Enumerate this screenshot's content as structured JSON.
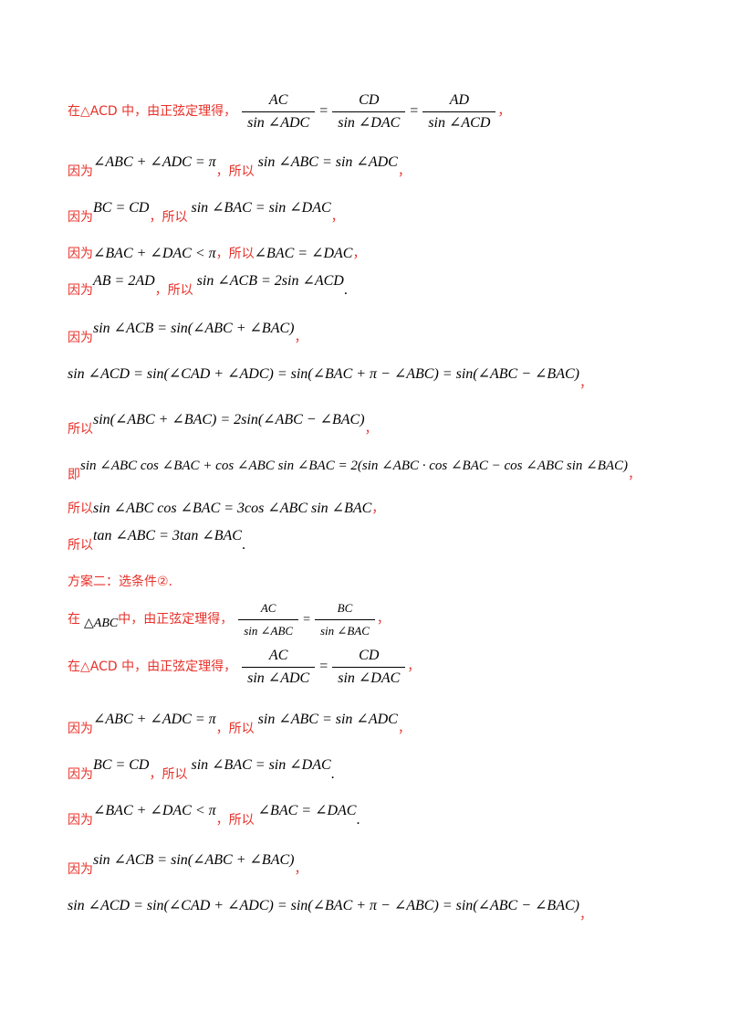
{
  "lines": [
    {
      "cn1": "在△ACD 中，由正弦定理得，",
      "f1n": "AC",
      "f1d": "sin ∠ADC",
      "f2n": "CD",
      "f2d": "sin ∠DAC",
      "f3n": "AD",
      "f3d": "sin ∠ACD",
      "end": "，"
    },
    {
      "cn1": "因为",
      "m1": "∠ABC + ∠ADC = π",
      "cn2": "，所以",
      "m2": "sin ∠ABC = sin ∠ADC",
      "end": "，"
    },
    {
      "cn1": "因为",
      "m1": "BC = CD",
      "cn2": "，所以",
      "m2": "sin ∠BAC = sin ∠DAC",
      "end": "，"
    },
    {
      "cn1": "因为",
      "m1": "∠BAC + ∠DAC < π",
      "cn2": "，所以",
      "m2": "∠BAC = ∠DAC",
      "end": "，"
    },
    {
      "cn1": "因为",
      "m1": "AB = 2AD",
      "cn2": "，所以",
      "m2": "sin ∠ACB = 2sin ∠ACD",
      "end": "."
    },
    {
      "cn1": "因为",
      "m1": "sin ∠ACB = sin(∠ABC + ∠BAC)",
      "end": "，"
    },
    {
      "m1": "sin ∠ACD = sin(∠CAD + ∠ADC) = sin(∠BAC + π − ∠ABC) = sin(∠ABC − ∠BAC)",
      "end": "，"
    },
    {
      "cn1": "所以",
      "m1": "sin(∠ABC + ∠BAC) = 2sin(∠ABC − ∠BAC)",
      "end": "，"
    },
    {
      "cn1": "即",
      "m1": "sin ∠ABC cos ∠BAC + cos ∠ABC sin ∠BAC = 2(sin ∠ABC · cos ∠BAC − cos ∠ABC sin ∠BAC)",
      "end": "，"
    },
    {
      "cn1": "所以",
      "m1": "sin ∠ABC cos ∠BAC = 3cos ∠ABC sin ∠BAC",
      "end": "，"
    },
    {
      "cn1": "所以",
      "m1": "tan ∠ABC = 3tan ∠BAC",
      "end": "."
    },
    {
      "cn1": "方案二：选条件②."
    },
    {
      "cn1": "在",
      "m1": "△ABC",
      "cn2": "中，由正弦定理得，",
      "f1n": "AC",
      "f1d": "sin ∠ABC",
      "f2n": "BC",
      "f2d": "sin ∠BAC",
      "end": "，"
    },
    {
      "cn1": "在△ACD 中，由正弦定理得，",
      "f1n": "AC",
      "f1d": "sin ∠ADC",
      "f2n": "CD",
      "f2d": "sin ∠DAC",
      "end": "，"
    },
    {
      "cn1": "因为",
      "m1": "∠ABC + ∠ADC = π",
      "cn2": "，所以",
      "m2": "sin ∠ABC = sin ∠ADC",
      "end": "，"
    },
    {
      "cn1": "因为",
      "m1": "BC = CD",
      "cn2": "，所以",
      "m2": "sin ∠BAC = sin ∠DAC",
      "end": "."
    },
    {
      "cn1": "因为",
      "m1": "∠BAC + ∠DAC < π",
      "cn2": "，所以",
      "m2": "∠BAC = ∠DAC",
      "end": "."
    },
    {
      "cn1": "因为",
      "m1": "sin ∠ACB = sin(∠ABC + ∠BAC)",
      "end": "，"
    },
    {
      "m1": "sin ∠ACD = sin(∠CAD + ∠ADC) = sin(∠BAC + π − ∠ABC) = sin(∠ABC − ∠BAC)",
      "end": "，"
    }
  ]
}
